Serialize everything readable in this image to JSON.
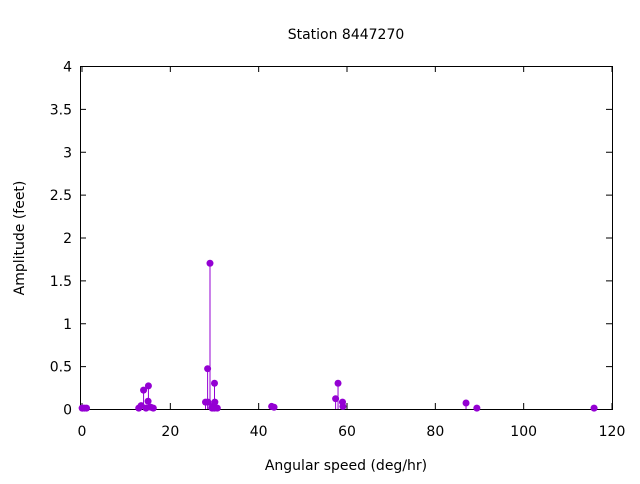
{
  "chart_data": {
    "type": "stem",
    "title": "Station 8447270",
    "xlabel": "Angular speed (deg/hr)",
    "ylabel": "Amplitude (feet)",
    "xlim": [
      0,
      120
    ],
    "ylim": [
      0,
      4
    ],
    "xticks": [
      0,
      20,
      40,
      60,
      80,
      100,
      120
    ],
    "yticks": [
      0,
      0.5,
      1,
      1.5,
      2,
      2.5,
      3,
      3.5,
      4
    ],
    "xtick_labels": [
      "0",
      "20",
      "40",
      "60",
      "80",
      "100",
      "120"
    ],
    "ytick_labels": [
      "0",
      "0.5",
      "1",
      "1.5",
      "2",
      "2.5",
      "3",
      "3.5",
      "4"
    ],
    "grid": false,
    "color": "#9400d3",
    "x": [
      0.04,
      0.08,
      0.54,
      1.02,
      12.85,
      13.4,
      13.94,
      14.5,
      14.96,
      15.04,
      15.59,
      16.14,
      27.97,
      28.44,
      28.51,
      28.98,
      29.46,
      29.53,
      29.96,
      30.0,
      30.08,
      30.63,
      42.93,
      43.48,
      57.42,
      57.97,
      58.98,
      59.07,
      86.95,
      89.4,
      115.94
    ],
    "y": [
      0.01,
      0.01,
      0.01,
      0.01,
      0.01,
      0.04,
      0.22,
      0.01,
      0.09,
      0.27,
      0.02,
      0.01,
      0.08,
      0.47,
      0.08,
      1.7,
      0.01,
      0.03,
      0.01,
      0.3,
      0.08,
      0.01,
      0.03,
      0.02,
      0.12,
      0.3,
      0.08,
      0.03,
      0.07,
      0.01,
      0.01
    ]
  }
}
